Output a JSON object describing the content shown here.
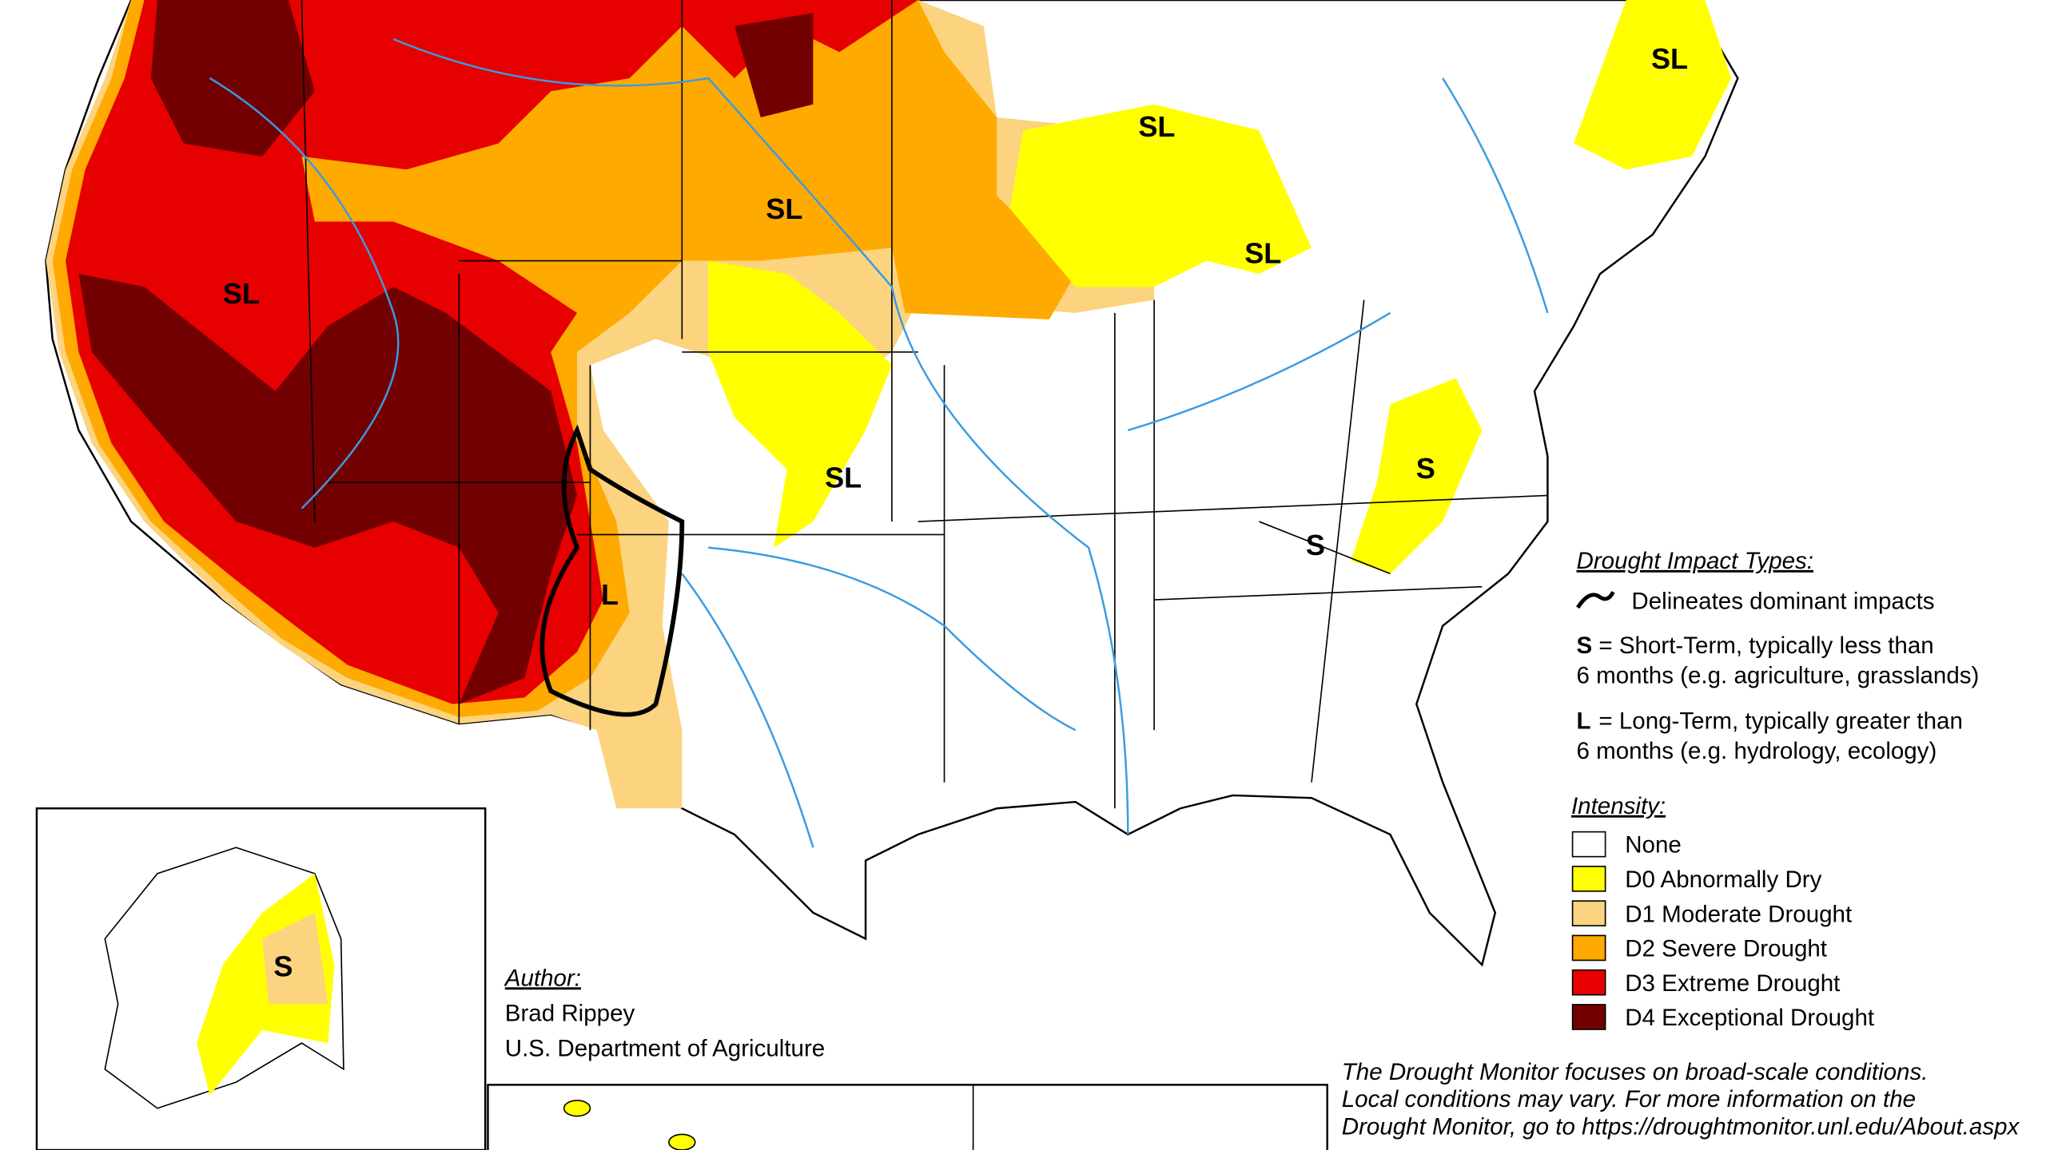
{
  "map_labels": [
    "SL",
    "SL",
    "SL",
    "SL",
    "SL",
    "SL",
    "S",
    "S",
    "S",
    "L"
  ],
  "impacts": {
    "title": "Drought Impact Types:",
    "line_text": "Delineates dominant impacts",
    "short_key": "S",
    "short_text": "= Short-Term, typically less than",
    "short_text2": "6 months (e.g. agriculture, grasslands)",
    "long_key": "L",
    "long_text": "= Long-Term, typically greater than",
    "long_text2": "6 months (e.g. hydrology, ecology)"
  },
  "intensity": {
    "title": "Intensity:",
    "items": [
      {
        "label": "None",
        "color": "#ffffff"
      },
      {
        "label": "D0 Abnormally Dry",
        "color": "#ffff00"
      },
      {
        "label": "D1 Moderate Drought",
        "color": "#fcd37f"
      },
      {
        "label": "D2 Severe Drought",
        "color": "#ffaa00"
      },
      {
        "label": "D3 Extreme Drought",
        "color": "#e60000"
      },
      {
        "label": "D4 Exceptional Drought",
        "color": "#730000"
      }
    ]
  },
  "author": {
    "title": "Author:",
    "name": "Brad Rippey",
    "org": "U.S. Department of Agriculture"
  },
  "note": [
    "The Drought Monitor focuses on broad-scale conditions.",
    "Local conditions may vary. For more information on the",
    "Drought Monitor, go to https://droughtmonitor.unl.edu/About.aspx"
  ]
}
